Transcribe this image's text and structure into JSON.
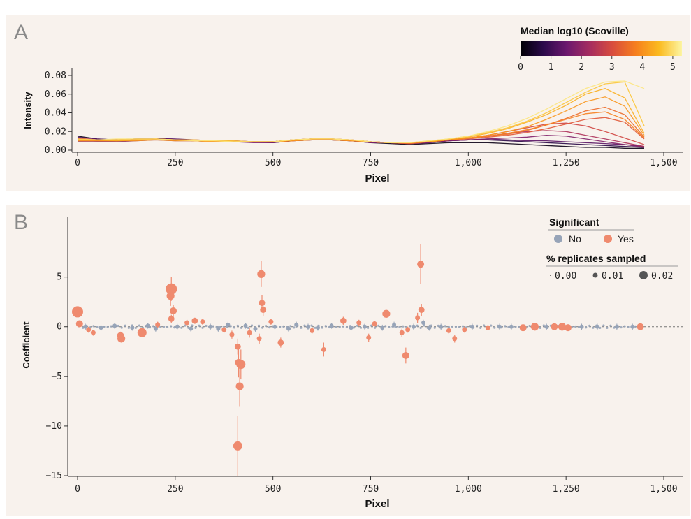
{
  "panels": {
    "a": {
      "letter": "A"
    },
    "b": {
      "letter": "B"
    }
  },
  "colors": {
    "panel_bg": "#f8f2ed",
    "significant_yes": "#ef8a6e",
    "significant_no": "#97a4b8",
    "colormap": [
      "#000004",
      "#2c0a4b",
      "#6b186e",
      "#a52c60",
      "#d94d3d",
      "#f67f1e",
      "#fbba1f",
      "#fcf5a3"
    ]
  },
  "chart_data": [
    {
      "id": "A",
      "type": "line",
      "xlabel": "Pixel",
      "ylabel": "Intensity",
      "xlim": [
        0,
        1500
      ],
      "ylim": [
        0,
        0.08
      ],
      "x_ticks": [
        0,
        250,
        500,
        750,
        1000,
        1250,
        1500
      ],
      "x_tick_labels": [
        "0",
        "250",
        "500",
        "750",
        "1,000",
        "1,250",
        "1,500"
      ],
      "y_ticks": [
        0,
        0.02,
        0.04,
        0.06,
        0.08
      ],
      "y_tick_labels": [
        "0.00",
        "0.02",
        "0.04",
        "0.06",
        "0.08"
      ],
      "colorbar": {
        "title": "Median log10 (Scoville)",
        "ticks": [
          0,
          1,
          2,
          3,
          4,
          5
        ],
        "range": [
          0,
          5.3
        ],
        "placement": "top-right"
      },
      "x": [
        0,
        50,
        100,
        150,
        200,
        250,
        300,
        350,
        400,
        450,
        500,
        550,
        600,
        650,
        700,
        750,
        800,
        850,
        900,
        950,
        1000,
        1050,
        1100,
        1150,
        1200,
        1250,
        1300,
        1350,
        1400,
        1450
      ],
      "series": [
        {
          "scoville": 0.2,
          "values": [
            0.015,
            0.012,
            0.011,
            0.012,
            0.013,
            0.011,
            0.01,
            0.009,
            0.009,
            0.009,
            0.008,
            0.01,
            0.011,
            0.011,
            0.01,
            0.008,
            0.007,
            0.006,
            0.007,
            0.008,
            0.008,
            0.008,
            0.007,
            0.006,
            0.005,
            0.004,
            0.003,
            0.003,
            0.002,
            0.002
          ]
        },
        {
          "scoville": 0.7,
          "values": [
            0.011,
            0.01,
            0.01,
            0.011,
            0.012,
            0.011,
            0.01,
            0.01,
            0.009,
            0.009,
            0.009,
            0.011,
            0.012,
            0.011,
            0.01,
            0.009,
            0.008,
            0.007,
            0.008,
            0.01,
            0.011,
            0.011,
            0.01,
            0.009,
            0.008,
            0.007,
            0.006,
            0.005,
            0.004,
            0.003
          ]
        },
        {
          "scoville": 1.3,
          "values": [
            0.014,
            0.012,
            0.011,
            0.012,
            0.013,
            0.012,
            0.011,
            0.01,
            0.01,
            0.009,
            0.009,
            0.011,
            0.012,
            0.012,
            0.011,
            0.009,
            0.008,
            0.007,
            0.009,
            0.01,
            0.011,
            0.012,
            0.011,
            0.01,
            0.01,
            0.009,
            0.008,
            0.007,
            0.006,
            0.004
          ]
        },
        {
          "scoville": 1.8,
          "values": [
            0.009,
            0.009,
            0.009,
            0.01,
            0.011,
            0.01,
            0.01,
            0.009,
            0.009,
            0.008,
            0.008,
            0.01,
            0.011,
            0.011,
            0.01,
            0.008,
            0.008,
            0.007,
            0.008,
            0.01,
            0.011,
            0.012,
            0.013,
            0.014,
            0.016,
            0.015,
            0.012,
            0.009,
            0.006,
            0.003
          ]
        },
        {
          "scoville": 2.4,
          "values": [
            0.012,
            0.011,
            0.01,
            0.011,
            0.012,
            0.011,
            0.01,
            0.01,
            0.009,
            0.009,
            0.009,
            0.01,
            0.012,
            0.012,
            0.01,
            0.009,
            0.008,
            0.007,
            0.009,
            0.011,
            0.013,
            0.015,
            0.018,
            0.02,
            0.021,
            0.02,
            0.016,
            0.012,
            0.008,
            0.004
          ]
        },
        {
          "scoville": 2.9,
          "values": [
            0.013,
            0.011,
            0.011,
            0.012,
            0.012,
            0.011,
            0.01,
            0.01,
            0.01,
            0.009,
            0.009,
            0.011,
            0.012,
            0.012,
            0.011,
            0.009,
            0.008,
            0.007,
            0.009,
            0.011,
            0.013,
            0.016,
            0.02,
            0.024,
            0.028,
            0.029,
            0.026,
            0.02,
            0.013,
            0.006
          ]
        },
        {
          "scoville": 3.2,
          "values": [
            0.01,
            0.01,
            0.01,
            0.011,
            0.011,
            0.011,
            0.01,
            0.009,
            0.009,
            0.009,
            0.009,
            0.01,
            0.011,
            0.011,
            0.01,
            0.009,
            0.008,
            0.008,
            0.009,
            0.011,
            0.012,
            0.014,
            0.016,
            0.019,
            0.023,
            0.028,
            0.033,
            0.035,
            0.03,
            0.012
          ]
        },
        {
          "scoville": 3.5,
          "values": [
            0.011,
            0.01,
            0.01,
            0.011,
            0.012,
            0.011,
            0.01,
            0.009,
            0.009,
            0.009,
            0.009,
            0.01,
            0.012,
            0.012,
            0.01,
            0.009,
            0.008,
            0.007,
            0.009,
            0.011,
            0.013,
            0.015,
            0.017,
            0.021,
            0.027,
            0.034,
            0.042,
            0.046,
            0.038,
            0.014
          ]
        },
        {
          "scoville": 3.8,
          "values": [
            0.012,
            0.011,
            0.01,
            0.011,
            0.012,
            0.011,
            0.011,
            0.01,
            0.009,
            0.009,
            0.009,
            0.011,
            0.012,
            0.012,
            0.011,
            0.009,
            0.008,
            0.008,
            0.009,
            0.011,
            0.013,
            0.015,
            0.018,
            0.022,
            0.027,
            0.033,
            0.039,
            0.041,
            0.033,
            0.013
          ]
        },
        {
          "scoville": 4.1,
          "values": [
            0.01,
            0.01,
            0.01,
            0.01,
            0.011,
            0.01,
            0.01,
            0.009,
            0.009,
            0.009,
            0.009,
            0.01,
            0.011,
            0.011,
            0.01,
            0.009,
            0.008,
            0.008,
            0.009,
            0.011,
            0.013,
            0.016,
            0.02,
            0.025,
            0.033,
            0.042,
            0.052,
            0.057,
            0.047,
            0.016
          ]
        },
        {
          "scoville": 4.4,
          "values": [
            0.011,
            0.011,
            0.01,
            0.011,
            0.012,
            0.011,
            0.01,
            0.01,
            0.009,
            0.009,
            0.009,
            0.011,
            0.012,
            0.012,
            0.011,
            0.009,
            0.008,
            0.008,
            0.009,
            0.012,
            0.014,
            0.018,
            0.023,
            0.03,
            0.038,
            0.048,
            0.06,
            0.066,
            0.056,
            0.018
          ]
        },
        {
          "scoville": 4.7,
          "values": [
            0.012,
            0.011,
            0.011,
            0.012,
            0.012,
            0.011,
            0.011,
            0.01,
            0.01,
            0.009,
            0.009,
            0.011,
            0.012,
            0.012,
            0.011,
            0.009,
            0.008,
            0.008,
            0.01,
            0.012,
            0.015,
            0.019,
            0.024,
            0.031,
            0.04,
            0.051,
            0.062,
            0.071,
            0.073,
            0.026
          ]
        },
        {
          "scoville": 5.1,
          "values": [
            0.011,
            0.011,
            0.012,
            0.012,
            0.012,
            0.011,
            0.01,
            0.01,
            0.009,
            0.009,
            0.009,
            0.011,
            0.012,
            0.012,
            0.011,
            0.009,
            0.008,
            0.008,
            0.01,
            0.012,
            0.015,
            0.02,
            0.026,
            0.034,
            0.044,
            0.055,
            0.066,
            0.073,
            0.074,
            0.066
          ]
        }
      ]
    },
    {
      "id": "B",
      "type": "scatter",
      "xlabel": "Pixel",
      "ylabel": "Coefficient",
      "xlim": [
        0,
        1500
      ],
      "ylim": [
        -15,
        8
      ],
      "x_ticks": [
        0,
        250,
        500,
        750,
        1000,
        1250,
        1500
      ],
      "x_tick_labels": [
        "0",
        "250",
        "500",
        "750",
        "1,000",
        "1,250",
        "1,500"
      ],
      "y_ticks": [
        5,
        0,
        -5,
        -10,
        -15
      ],
      "y_tick_labels": [
        "5",
        "0",
        "−5",
        "−10",
        "−15"
      ],
      "legend": {
        "placement": "top-right",
        "significant_title": "Significant",
        "significant_labels": [
          "No",
          "Yes"
        ],
        "size_title": "% replicates sampled",
        "size_labels": [
          "0.00",
          "0.01",
          "0.02"
        ]
      },
      "significant_points": [
        {
          "x": 0,
          "y": 1.5,
          "err": 0.3,
          "size": 0.02
        },
        {
          "x": 5,
          "y": 0.3,
          "err": 0.2,
          "size": 0.01
        },
        {
          "x": 28,
          "y": -0.3,
          "err": 0.3,
          "size": 0.005
        },
        {
          "x": 40,
          "y": -0.6,
          "err": 0.3,
          "size": 0.005
        },
        {
          "x": 110,
          "y": -0.9,
          "err": 0.4,
          "size": 0.01
        },
        {
          "x": 112,
          "y": -1.2,
          "err": 0.4,
          "size": 0.012
        },
        {
          "x": 165,
          "y": -0.6,
          "err": 0.4,
          "size": 0.015
        },
        {
          "x": 205,
          "y": 0.2,
          "err": 0.3,
          "size": 0.005
        },
        {
          "x": 240,
          "y": 3.8,
          "err": 1.2,
          "size": 0.02
        },
        {
          "x": 238,
          "y": 3.1,
          "err": 1.0,
          "size": 0.012
        },
        {
          "x": 245,
          "y": 1.6,
          "err": 0.6,
          "size": 0.01
        },
        {
          "x": 240,
          "y": 0.8,
          "err": 0.4,
          "size": 0.008
        },
        {
          "x": 280,
          "y": 0.4,
          "err": 0.3,
          "size": 0.005
        },
        {
          "x": 300,
          "y": 0.6,
          "err": 0.3,
          "size": 0.008
        },
        {
          "x": 320,
          "y": 0.5,
          "err": 0.3,
          "size": 0.005
        },
        {
          "x": 375,
          "y": -0.3,
          "err": 0.3,
          "size": 0.005
        },
        {
          "x": 395,
          "y": -0.8,
          "err": 0.4,
          "size": 0.005
        },
        {
          "x": 410,
          "y": -2.0,
          "err": 0.8,
          "size": 0.008
        },
        {
          "x": 412,
          "y": -3.6,
          "err": 1.5,
          "size": 0.01
        },
        {
          "x": 418,
          "y": -3.8,
          "err": 1.5,
          "size": 0.015
        },
        {
          "x": 415,
          "y": -6.0,
          "err": 2.0,
          "size": 0.012
        },
        {
          "x": 410,
          "y": -12.0,
          "err": 3.0,
          "size": 0.015
        },
        {
          "x": 440,
          "y": -0.6,
          "err": 0.5,
          "size": 0.005
        },
        {
          "x": 465,
          "y": -1.2,
          "err": 0.5,
          "size": 0.005
        },
        {
          "x": 470,
          "y": 5.3,
          "err": 1.3,
          "size": 0.012
        },
        {
          "x": 472,
          "y": 2.4,
          "err": 0.8,
          "size": 0.008
        },
        {
          "x": 475,
          "y": 1.7,
          "err": 0.6,
          "size": 0.008
        },
        {
          "x": 495,
          "y": 0.5,
          "err": 0.3,
          "size": 0.005
        },
        {
          "x": 520,
          "y": -1.6,
          "err": 0.5,
          "size": 0.008
        },
        {
          "x": 600,
          "y": -0.4,
          "err": 0.3,
          "size": 0.005
        },
        {
          "x": 630,
          "y": -2.3,
          "err": 0.7,
          "size": 0.005
        },
        {
          "x": 680,
          "y": 0.6,
          "err": 0.4,
          "size": 0.008
        },
        {
          "x": 720,
          "y": 0.4,
          "err": 0.3,
          "size": 0.005
        },
        {
          "x": 745,
          "y": -1.1,
          "err": 0.4,
          "size": 0.005
        },
        {
          "x": 760,
          "y": 0.3,
          "err": 0.3,
          "size": 0.005
        },
        {
          "x": 790,
          "y": 1.3,
          "err": 0.4,
          "size": 0.012
        },
        {
          "x": 830,
          "y": -0.6,
          "err": 0.4,
          "size": 0.005
        },
        {
          "x": 840,
          "y": -2.9,
          "err": 0.8,
          "size": 0.01
        },
        {
          "x": 845,
          "y": -0.3,
          "err": 0.3,
          "size": 0.005
        },
        {
          "x": 870,
          "y": 0.9,
          "err": 0.5,
          "size": 0.005
        },
        {
          "x": 878,
          "y": 6.3,
          "err": 2.0,
          "size": 0.01
        },
        {
          "x": 880,
          "y": 1.7,
          "err": 0.6,
          "size": 0.008
        },
        {
          "x": 950,
          "y": -0.4,
          "err": 0.3,
          "size": 0.005
        },
        {
          "x": 965,
          "y": -1.2,
          "err": 0.4,
          "size": 0.005
        },
        {
          "x": 990,
          "y": -0.3,
          "err": 0.3,
          "size": 0.005
        },
        {
          "x": 1050,
          "y": -0.1,
          "err": 0.2,
          "size": 0.005
        },
        {
          "x": 1140,
          "y": -0.1,
          "err": 0.2,
          "size": 0.01
        },
        {
          "x": 1170,
          "y": 0.0,
          "err": 0.2,
          "size": 0.012
        },
        {
          "x": 1220,
          "y": 0.0,
          "err": 0.2,
          "size": 0.01
        },
        {
          "x": 1240,
          "y": 0.0,
          "err": 0.2,
          "size": 0.012
        },
        {
          "x": 1255,
          "y": -0.1,
          "err": 0.2,
          "size": 0.01
        },
        {
          "x": 1440,
          "y": 0.0,
          "err": 0.2,
          "size": 0.01
        }
      ],
      "nonsignificant_points": [
        {
          "x": 20,
          "y": 0.0
        },
        {
          "x": 60,
          "y": -0.1
        },
        {
          "x": 95,
          "y": 0.1
        },
        {
          "x": 140,
          "y": -0.1
        },
        {
          "x": 180,
          "y": 0.1
        },
        {
          "x": 200,
          "y": -0.2
        },
        {
          "x": 255,
          "y": 0.0
        },
        {
          "x": 290,
          "y": -0.2
        },
        {
          "x": 340,
          "y": 0.0
        },
        {
          "x": 360,
          "y": -0.2
        },
        {
          "x": 385,
          "y": 0.2
        },
        {
          "x": 430,
          "y": 0.1
        },
        {
          "x": 455,
          "y": -0.2
        },
        {
          "x": 505,
          "y": 0.0
        },
        {
          "x": 540,
          "y": -0.2
        },
        {
          "x": 560,
          "y": 0.2
        },
        {
          "x": 590,
          "y": 0.0
        },
        {
          "x": 615,
          "y": -0.1
        },
        {
          "x": 650,
          "y": 0.1
        },
        {
          "x": 700,
          "y": -0.1
        },
        {
          "x": 735,
          "y": 0.0
        },
        {
          "x": 780,
          "y": -0.1
        },
        {
          "x": 810,
          "y": 0.2
        },
        {
          "x": 860,
          "y": 0.0
        },
        {
          "x": 885,
          "y": 0.4
        },
        {
          "x": 900,
          "y": -0.1
        },
        {
          "x": 930,
          "y": 0.0
        },
        {
          "x": 1010,
          "y": 0.0
        },
        {
          "x": 1080,
          "y": 0.0
        },
        {
          "x": 1110,
          "y": 0.0
        },
        {
          "x": 1200,
          "y": 0.0
        },
        {
          "x": 1290,
          "y": 0.0
        },
        {
          "x": 1330,
          "y": 0.0
        },
        {
          "x": 1380,
          "y": 0.0
        },
        {
          "x": 1420,
          "y": 0.0
        }
      ]
    }
  ]
}
